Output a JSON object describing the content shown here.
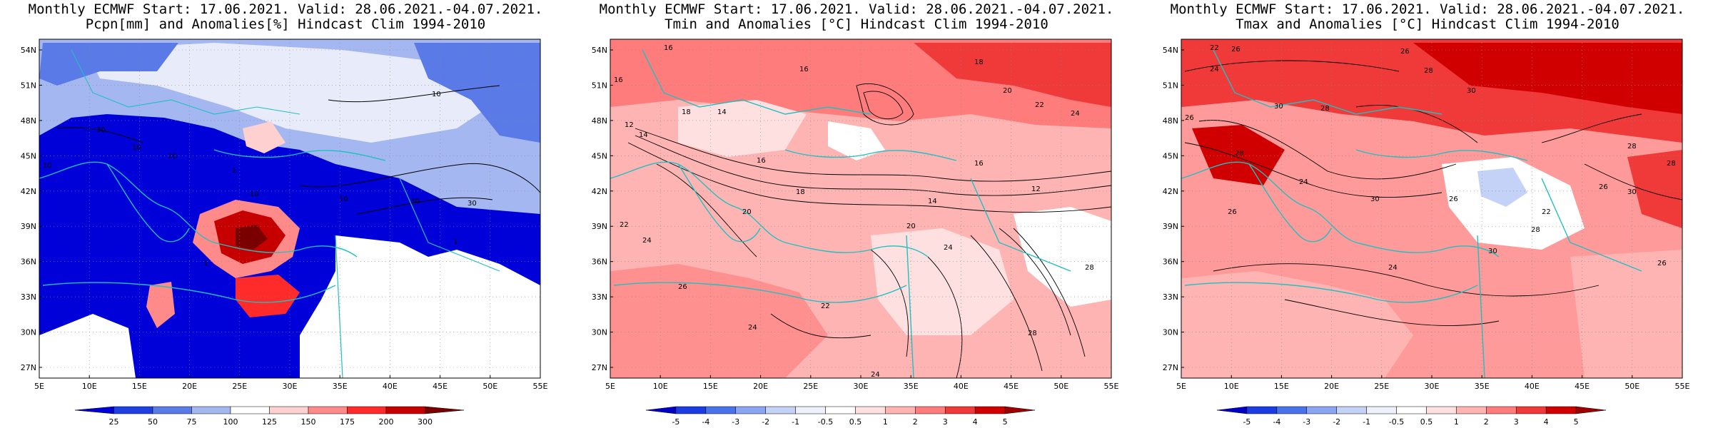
{
  "panels": [
    {
      "title1": "Monthly ECMWF Start: 17.06.2021. Valid: 28.06.2021.-04.07.2021.",
      "title2": "Pcpn[mm] and Anomalies[%] Hindcast Clim 1994-2010",
      "lat_labels": [
        "54N",
        "51N",
        "48N",
        "45N",
        "42N",
        "39N",
        "36N",
        "33N",
        "30N",
        "27N"
      ],
      "lon_labels": [
        "5E",
        "10E",
        "15E",
        "20E",
        "25E",
        "30E",
        "35E",
        "40E",
        "45E",
        "50E",
        "55E"
      ],
      "colorbar": {
        "labels": [
          "25",
          "50",
          "75",
          "100",
          "125",
          "150",
          "175",
          "200",
          "300"
        ],
        "colors": [
          "#0000d8",
          "#1f3fe0",
          "#5a7ae8",
          "#a5b7f0",
          "#ffffff",
          "#ffd0d0",
          "#ff8a8a",
          "#ff2a2a",
          "#c60000",
          "#7a0000"
        ]
      },
      "contour_labels": [
        "10",
        "10",
        "10",
        "10",
        "10",
        "10",
        "30",
        "30",
        "30",
        "1",
        "1",
        "1"
      ]
    },
    {
      "title1": "Monthly ECMWF Start: 17.06.2021. Valid: 28.06.2021.-04.07.2021.",
      "title2": "Tmin and Anomalies [°C] Hindcast Clim 1994-2010",
      "lat_labels": [
        "54N",
        "51N",
        "48N",
        "45N",
        "42N",
        "39N",
        "36N",
        "33N",
        "30N",
        "27N"
      ],
      "lon_labels": [
        "5E",
        "10E",
        "15E",
        "20E",
        "25E",
        "30E",
        "35E",
        "40E",
        "45E",
        "50E",
        "55E"
      ],
      "colorbar": {
        "labels": [
          "-5",
          "-4",
          "-3",
          "-2",
          "-1",
          "-0.5",
          "0.5",
          "1",
          "2",
          "3",
          "4",
          "5"
        ],
        "colors": [
          "#0000c8",
          "#1b3ce0",
          "#4a72ea",
          "#8aa6f2",
          "#c4d2f8",
          "#eef1fc",
          "#ffffff",
          "#ffe0e0",
          "#ffb4b4",
          "#ff7c7c",
          "#f03a3a",
          "#d00000",
          "#a00000"
        ]
      },
      "contour_labels": [
        "16",
        "16",
        "16",
        "18",
        "18",
        "20",
        "22",
        "24",
        "12",
        "14",
        "14",
        "16",
        "18",
        "20",
        "22",
        "24",
        "26",
        "24",
        "22",
        "20",
        "24",
        "28",
        "16",
        "12",
        "14",
        "28",
        "24"
      ]
    },
    {
      "title1": "Monthly ECMWF Start: 17.06.2021. Valid: 28.06.2021.-04.07.2021.",
      "title2": "Tmax and Anomalies [°C] Hindcast Clim 1994-2010",
      "lat_labels": [
        "54N",
        "51N",
        "48N",
        "45N",
        "42N",
        "39N",
        "36N",
        "33N",
        "30N",
        "27N"
      ],
      "lon_labels": [
        "5E",
        "10E",
        "15E",
        "20E",
        "25E",
        "30E",
        "35E",
        "40E",
        "45E",
        "50E",
        "55E"
      ],
      "colorbar": {
        "labels": [
          "-5",
          "-4",
          "-3",
          "-2",
          "-1",
          "-0.5",
          "0.5",
          "1",
          "2",
          "3",
          "4",
          "5"
        ],
        "colors": [
          "#0000c8",
          "#1b3ce0",
          "#4a72ea",
          "#8aa6f2",
          "#c4d2f8",
          "#eef1fc",
          "#ffffff",
          "#ffe0e0",
          "#ffb4b4",
          "#ff7c7c",
          "#f03a3a",
          "#d00000",
          "#a00000"
        ]
      },
      "contour_labels": [
        "22",
        "26",
        "28",
        "30",
        "24",
        "26",
        "28",
        "30",
        "26",
        "28",
        "24",
        "30",
        "26",
        "28",
        "30",
        "26",
        "28",
        "30",
        "22",
        "24",
        "26",
        "28",
        "26"
      ]
    }
  ]
}
